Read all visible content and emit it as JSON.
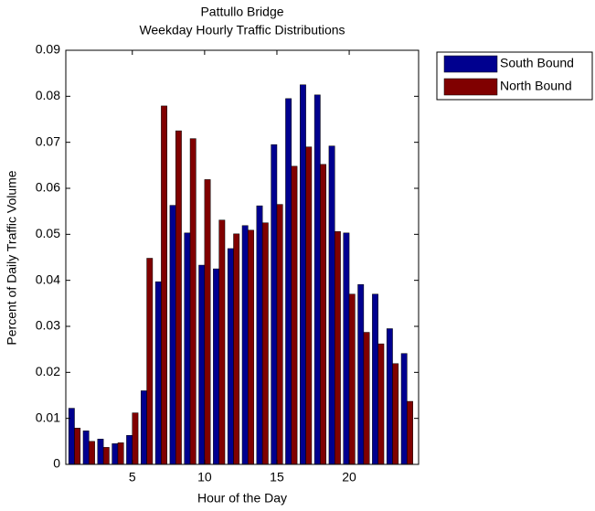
{
  "chart_data": {
    "type": "bar",
    "title": "Pattullo Bridge",
    "subtitle": "Weekday Hourly Traffic Distributions",
    "x_label": "Hour of the Day",
    "y_label": "Percent of Daily Traffic Volume",
    "x": [
      1,
      2,
      3,
      4,
      5,
      6,
      7,
      8,
      9,
      10,
      11,
      12,
      13,
      14,
      15,
      16,
      17,
      18,
      19,
      20,
      21,
      22,
      23,
      24
    ],
    "series": [
      {
        "name": "South Bound",
        "color": "#00008f",
        "values": [
          0.0122,
          0.0073,
          0.0055,
          0.0045,
          0.0063,
          0.016,
          0.0397,
          0.0563,
          0.0503,
          0.0433,
          0.0425,
          0.0469,
          0.0519,
          0.0562,
          0.0695,
          0.0795,
          0.0825,
          0.0803,
          0.0692,
          0.0503,
          0.0391,
          0.037,
          0.0295,
          0.0241
        ]
      },
      {
        "name": "North Bound",
        "color": "#800000",
        "values": [
          0.0079,
          0.005,
          0.0037,
          0.0047,
          0.0112,
          0.0448,
          0.0779,
          0.0725,
          0.0708,
          0.0619,
          0.0531,
          0.0501,
          0.0509,
          0.0525,
          0.0565,
          0.0648,
          0.069,
          0.0652,
          0.0506,
          0.037,
          0.0287,
          0.0262,
          0.0219,
          0.0137
        ]
      }
    ],
    "xlim": [
      0.4,
      24.8
    ],
    "xticks": [
      5,
      10,
      15,
      20
    ],
    "ylim": [
      0,
      0.09
    ],
    "yticks": [
      0,
      0.01,
      0.02,
      0.03,
      0.04,
      0.05,
      0.06,
      0.07,
      0.08,
      0.09
    ],
    "legend": "outside-top-right"
  }
}
